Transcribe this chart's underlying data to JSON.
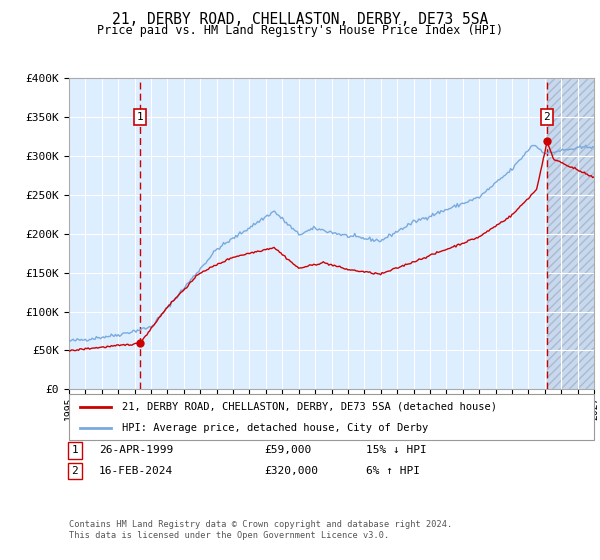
{
  "title": "21, DERBY ROAD, CHELLASTON, DERBY, DE73 5SA",
  "subtitle": "Price paid vs. HM Land Registry's House Price Index (HPI)",
  "sale1_date_num": 1999.32,
  "sale1_price": 59000,
  "sale2_date_num": 2024.12,
  "sale2_price": 320000,
  "xmin": 1995.0,
  "xmax": 2027.0,
  "ymin": 0,
  "ymax": 400000,
  "yticks": [
    0,
    50000,
    100000,
    150000,
    200000,
    250000,
    300000,
    350000,
    400000
  ],
  "ytick_labels": [
    "£0",
    "£50K",
    "£100K",
    "£150K",
    "£200K",
    "£250K",
    "£300K",
    "£350K",
    "£400K"
  ],
  "hpi_color": "#7aaadd",
  "price_color": "#cc0000",
  "bg_color": "#ddeeff",
  "future_bg_color": "#c8d8ee",
  "grid_color": "#ffffff",
  "hatch_color": "#aabbcc",
  "legend_label_price": "21, DERBY ROAD, CHELLASTON, DERBY, DE73 5SA (detached house)",
  "legend_label_hpi": "HPI: Average price, detached house, City of Derby",
  "footer1": "Contains HM Land Registry data © Crown copyright and database right 2024.",
  "footer2": "This data is licensed under the Open Government Licence v3.0.",
  "table_row1": [
    "1",
    "26-APR-1999",
    "£59,000",
    "15% ↓ HPI"
  ],
  "table_row2": [
    "2",
    "16-FEB-2024",
    "£320,000",
    "6% ↑ HPI"
  ]
}
